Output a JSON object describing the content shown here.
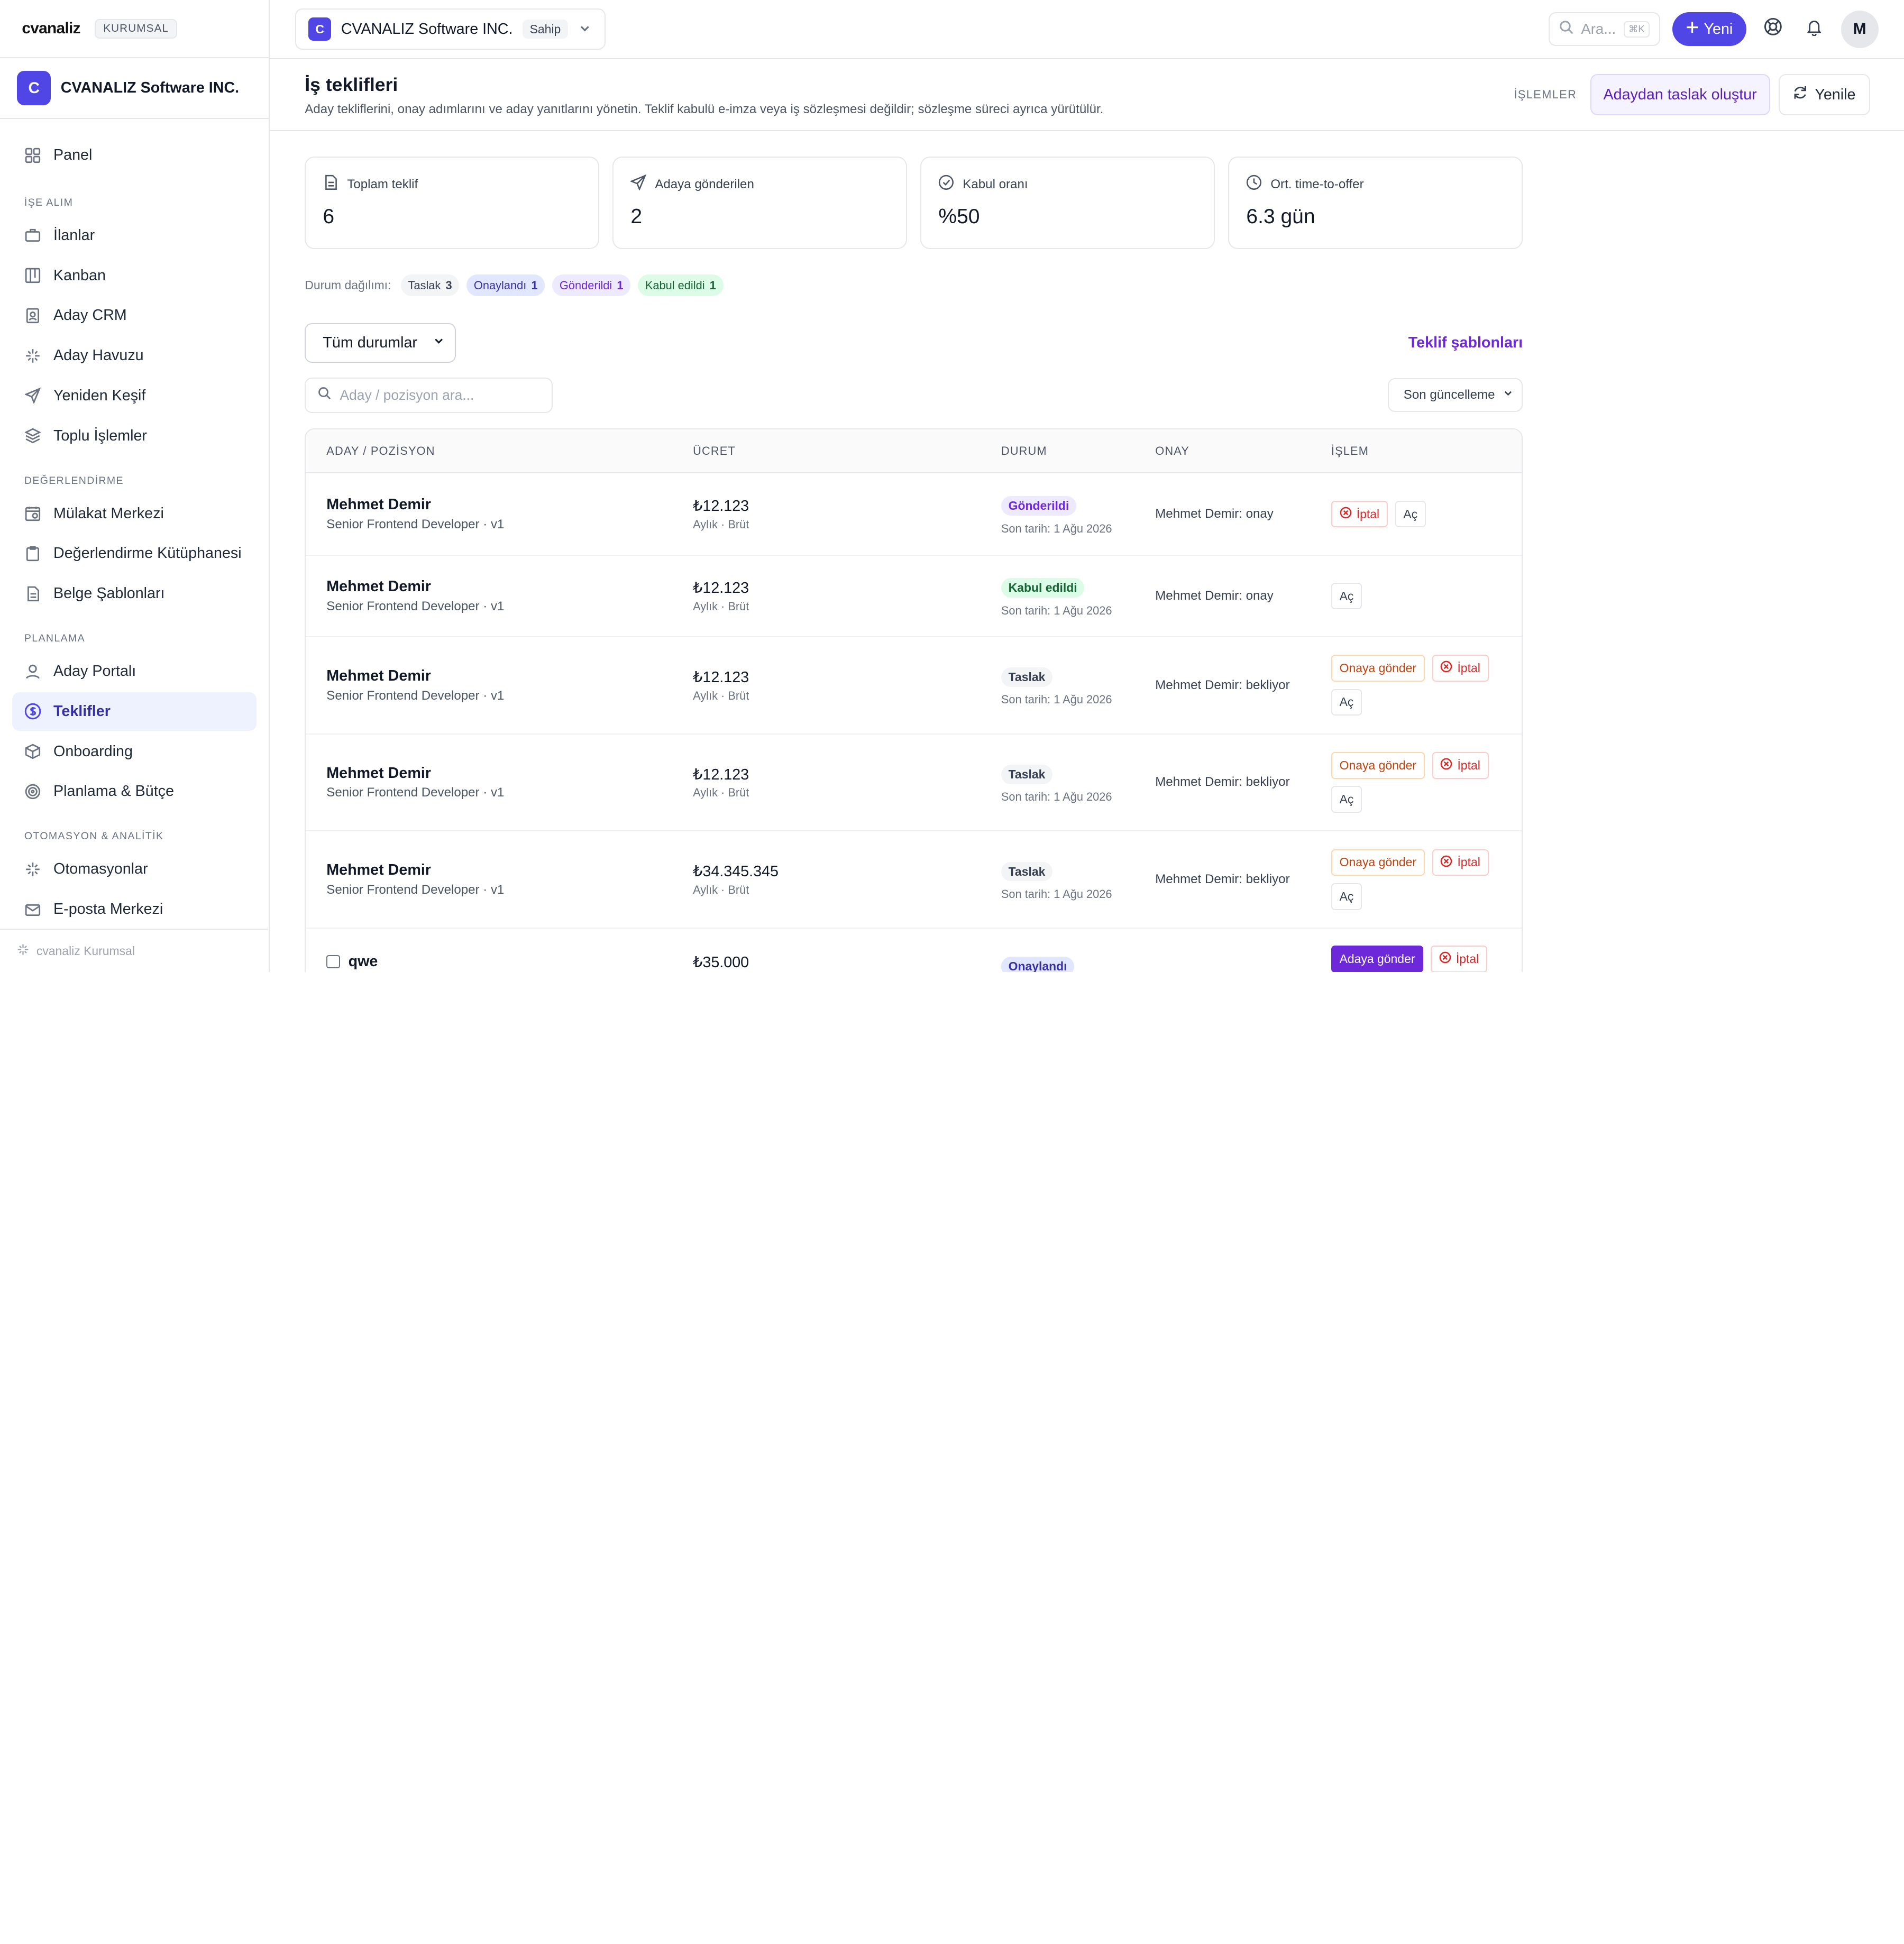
{
  "brand": {
    "logo": "cvanaliz",
    "badge": "KURUMSAL"
  },
  "org": {
    "initial": "C",
    "name": "CVANALIZ Software INC."
  },
  "sidebar": {
    "top": [
      {
        "label": "Panel",
        "icon": "grid-icon"
      }
    ],
    "sections": [
      {
        "title": "İŞE ALIM",
        "items": [
          {
            "label": "İlanlar",
            "icon": "briefcase-icon"
          },
          {
            "label": "Kanban",
            "icon": "kanban-icon"
          },
          {
            "label": "Aday CRM",
            "icon": "contact-icon"
          },
          {
            "label": "Aday Havuzu",
            "icon": "sparkle-icon"
          },
          {
            "label": "Yeniden Keşif",
            "icon": "send-icon"
          },
          {
            "label": "Toplu İşlemler",
            "icon": "layers-icon"
          }
        ]
      },
      {
        "title": "DEĞERLENDİRME",
        "items": [
          {
            "label": "Mülakat Merkezi",
            "icon": "calendar-clock-icon"
          },
          {
            "label": "Değerlendirme Kütüphanesi",
            "icon": "clipboard-icon"
          },
          {
            "label": "Belge Şablonları",
            "icon": "document-icon"
          }
        ]
      },
      {
        "title": "PLANLAMA",
        "items": [
          {
            "label": "Aday Portalı",
            "icon": "user-icon"
          },
          {
            "label": "Teklifler",
            "icon": "dollar-icon",
            "active": true
          },
          {
            "label": "Onboarding",
            "icon": "package-icon"
          },
          {
            "label": "Planlama & Bütçe",
            "icon": "target-icon"
          }
        ]
      },
      {
        "title": "OTOMASYON & ANALİTİK",
        "items": [
          {
            "label": "Otomasyonlar",
            "icon": "sparkle-icon"
          },
          {
            "label": "E-posta Merkezi",
            "icon": "mail-icon"
          }
        ]
      }
    ],
    "footer": "cvanaliz Kurumsal"
  },
  "topbar": {
    "workspace_initial": "C",
    "workspace_name": "CVANALIZ Software INC.",
    "workspace_role": "Sahip",
    "search_placeholder": "Ara...",
    "search_shortcut": "⌘K",
    "new_label": "Yeni",
    "user_initial": "M"
  },
  "header": {
    "title": "İş teklifleri",
    "subtitle": "Aday tekliflerini, onay adımlarını ve aday yanıtlarını yönetin. Teklif kabulü e-imza veya iş sözleşmesi değildir; sözleşme süreci ayrıca yürütülür.",
    "actions_label": "İŞLEMLER",
    "draft_label": "Adaydan taslak oluştur",
    "refresh_label": "Yenile"
  },
  "stats": [
    {
      "label": "Toplam teklif",
      "value": "6",
      "icon": "document-icon"
    },
    {
      "label": "Adaya gönderilen",
      "value": "2",
      "icon": "send-icon"
    },
    {
      "label": "Kabul oranı",
      "value": "%50",
      "icon": "check-circle-icon"
    },
    {
      "label": "Ort. time-to-offer",
      "value": "6.3 gün",
      "icon": "clock-icon"
    }
  ],
  "distribution": {
    "label": "Durum dağılımı:",
    "chips": [
      {
        "label": "Taslak",
        "count": "3",
        "tone": "gray"
      },
      {
        "label": "Onaylandı",
        "count": "1",
        "tone": "indigo"
      },
      {
        "label": "Gönderildi",
        "count": "1",
        "tone": "purple"
      },
      {
        "label": "Kabul edildi",
        "count": "1",
        "tone": "green"
      }
    ]
  },
  "filters": {
    "status_value": "Tüm durumlar",
    "templates_link": "Teklif şablonları",
    "search_placeholder": "Aday / pozisyon ara...",
    "sort_value": "Son güncelleme"
  },
  "table": {
    "headers": [
      "ADAY / POZİSYON",
      "ÜCRET",
      "DURUM",
      "ONAY",
      "İŞLEM"
    ],
    "rows": [
      {
        "name": "Mehmet Demir",
        "position": "Senior Frontend Developer · v1",
        "amount": "₺12.123",
        "amount_sub": "Aylık · Brüt",
        "status": "Gönderildi",
        "status_tone": "purple",
        "deadline": "Son tarih: 1 Ağu 2026",
        "approval": "Mehmet Demir: onay",
        "actions": [
          {
            "label": "İptal",
            "kind": "red"
          },
          {
            "label": "Aç",
            "kind": "plain"
          }
        ]
      },
      {
        "name": "Mehmet Demir",
        "position": "Senior Frontend Developer · v1",
        "amount": "₺12.123",
        "amount_sub": "Aylık · Brüt",
        "status": "Kabul edildi",
        "status_tone": "green",
        "deadline": "Son tarih: 1 Ağu 2026",
        "approval": "Mehmet Demir: onay",
        "actions": [
          {
            "label": "Aç",
            "kind": "plain"
          }
        ]
      },
      {
        "name": "Mehmet Demir",
        "position": "Senior Frontend Developer · v1",
        "amount": "₺12.123",
        "amount_sub": "Aylık · Brüt",
        "status": "Taslak",
        "status_tone": "gray",
        "deadline": "Son tarih: 1 Ağu 2026",
        "approval": "Mehmet Demir: bekliyor",
        "actions": [
          {
            "label": "Onaya gönder",
            "kind": "orange"
          },
          {
            "label": "İptal",
            "kind": "red"
          },
          {
            "label": "Aç",
            "kind": "plain"
          }
        ]
      },
      {
        "name": "Mehmet Demir",
        "position": "Senior Frontend Developer · v1",
        "amount": "₺12.123",
        "amount_sub": "Aylık · Brüt",
        "status": "Taslak",
        "status_tone": "gray",
        "deadline": "Son tarih: 1 Ağu 2026",
        "approval": "Mehmet Demir: bekliyor",
        "actions": [
          {
            "label": "Onaya gönder",
            "kind": "orange"
          },
          {
            "label": "İptal",
            "kind": "red"
          },
          {
            "label": "Aç",
            "kind": "plain"
          }
        ]
      },
      {
        "name": "Mehmet Demir",
        "position": "Senior Frontend Developer · v1",
        "amount": "₺34.345.345",
        "amount_sub": "Aylık · Brüt",
        "status": "Taslak",
        "status_tone": "gray",
        "deadline": "Son tarih: 1 Ağu 2026",
        "approval": "Mehmet Demir: bekliyor",
        "actions": [
          {
            "label": "Onaya gönder",
            "kind": "orange"
          },
          {
            "label": "İptal",
            "kind": "red"
          },
          {
            "label": "Aç",
            "kind": "plain"
          }
        ]
      },
      {
        "name": "qwe",
        "position": "",
        "amount": "₺35.000",
        "amount_sub": "",
        "status": "Onaylandı",
        "status_tone": "indigo",
        "deadline": "",
        "approval": "",
        "checkbox": true,
        "actions": [
          {
            "label": "Adaya gönder",
            "kind": "primary"
          },
          {
            "label": "İptal",
            "kind": "red"
          }
        ]
      }
    ]
  },
  "colors": {
    "accent": "#4f46e5",
    "accent_text": "#6d28d9",
    "danger": "#dc2626",
    "warning": "#c2410c"
  }
}
